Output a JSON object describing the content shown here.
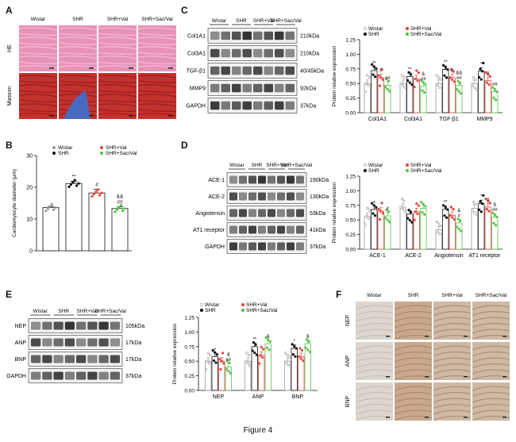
{
  "figure": {
    "caption": "Figure 4"
  },
  "panel_labels": {
    "A": "A",
    "B": "B",
    "C": "C",
    "D": "D",
    "E": "E",
    "F": "F"
  },
  "panel_a": {
    "columns": [
      "Wistar",
      "SHR",
      "SHR+Val",
      "SHR+Sac/Val"
    ],
    "rows": [
      "HE",
      "Masson"
    ]
  },
  "panel_c_blot": {
    "groups": [
      "Wistar",
      "SHR",
      "SHR+Val",
      "SHR+Sac/Val"
    ],
    "bands": [
      {
        "protein": "Col1A1",
        "size": "210kDa"
      },
      {
        "protein": "Col3A1",
        "size": "210kDa"
      },
      {
        "protein": "TGF-β1",
        "size": "40/45kDa"
      },
      {
        "protein": "MMP9",
        "size": "92kDa"
      },
      {
        "protein": "GAPDH",
        "size": "37kDa"
      }
    ]
  },
  "panel_d_blot": {
    "groups": [
      "Wistar",
      "SHR",
      "SHR+Val",
      "SHR+Sac/Val"
    ],
    "bands": [
      {
        "protein": "ACE-1",
        "size": "190kDa"
      },
      {
        "protein": "ACE-2",
        "size": "130kDa"
      },
      {
        "protein": "Angiotensin",
        "size": "53kDa"
      },
      {
        "protein": "AT1 receptor",
        "size": "41kDa"
      },
      {
        "protein": "GAPDH",
        "size": "37kDa"
      }
    ]
  },
  "panel_e_blot": {
    "groups": [
      "Wistar",
      "SHR",
      "SHR+Val",
      "SHR+Sac/Val"
    ],
    "bands": [
      {
        "protein": "NEP",
        "size": "105kDa"
      },
      {
        "protein": "ANP",
        "size": "17kDa"
      },
      {
        "protein": "BNP",
        "size": "17kDa"
      },
      {
        "protein": "GAPDH",
        "size": "37kDa"
      }
    ]
  },
  "panel_f": {
    "columns": [
      "Wistar",
      "SHR",
      "SHR+Val",
      "SHR+Sac/Val"
    ],
    "rows": [
      "NEP",
      "ANP",
      "BNP"
    ]
  },
  "colors": {
    "wistar": "#9a9a9a",
    "shr": "#111111",
    "val": "#e8463c",
    "sacval": "#57c34a"
  },
  "chart_data": [
    {
      "id": "B",
      "type": "bar",
      "categories": [
        "Wistar",
        "SHR",
        "SHR+Val",
        "SHR+Sac/Val"
      ],
      "values": [
        13.6,
        21.2,
        18.2,
        13.3
      ],
      "errors": [
        0.4,
        0.7,
        1.2,
        0.6
      ],
      "ylabel": "Cardiomyocyte diameter (μm)",
      "ylim": [
        0,
        30
      ],
      "yticks": [
        0,
        10,
        20,
        30
      ],
      "legend": [
        "Wistar",
        "SHR",
        "SHR+Val",
        "SHR+Sac/Val"
      ],
      "annotations": [
        "",
        "**",
        "#",
        "&&\n##"
      ]
    },
    {
      "id": "C",
      "type": "bar",
      "categories": [
        "Col1A1",
        "Col3A1",
        "TGF-β1",
        "MMP9"
      ],
      "series": [
        {
          "name": "Wistar",
          "values": [
            0.5,
            0.5,
            0.5,
            0.5
          ]
        },
        {
          "name": "SHR",
          "values": [
            0.72,
            0.62,
            0.74,
            0.71
          ]
        },
        {
          "name": "SHR+Val",
          "values": [
            0.6,
            0.58,
            0.6,
            0.55
          ]
        },
        {
          "name": "SHR+Sac/Val",
          "values": [
            0.47,
            0.45,
            0.47,
            0.36
          ]
        }
      ],
      "ylabel": "Protein relative expression",
      "ylim": [
        0,
        1.25
      ],
      "yticks": [
        "0.00",
        "0.25",
        "0.50",
        "0.75",
        "1.00",
        "1.25"
      ],
      "annotations": [
        [
          "",
          "**",
          "#",
          "##"
        ],
        [
          "",
          "**",
          "",
          "&\n##"
        ],
        [
          "",
          "**",
          "#",
          "&&\n##"
        ],
        [
          "",
          "*",
          "#",
          "##"
        ]
      ]
    },
    {
      "id": "D",
      "type": "bar",
      "categories": [
        "ACE-1",
        "ACE-2",
        "Angiotensin",
        "AT1 receptor"
      ],
      "series": [
        {
          "name": "Wistar",
          "values": [
            0.56,
            0.72,
            0.33,
            0.7
          ]
        },
        {
          "name": "SHR",
          "values": [
            0.68,
            0.6,
            0.68,
            0.78
          ]
        },
        {
          "name": "SHR+Val",
          "values": [
            0.65,
            0.64,
            0.58,
            0.72
          ]
        },
        {
          "name": "SHR+Sac/Val",
          "values": [
            0.57,
            0.7,
            0.45,
            0.55
          ]
        }
      ],
      "ylabel": "Protein relative expression",
      "ylim": [
        0,
        1.25
      ],
      "yticks": [
        "0.00",
        "0.25",
        "0.50",
        "0.75",
        "1.00",
        "1.25"
      ],
      "annotations": [
        [
          "",
          "+",
          "",
          "#"
        ],
        [
          "",
          "",
          "",
          ""
        ],
        [
          "",
          "**",
          "",
          "&\n#"
        ],
        [
          "",
          "*",
          "#",
          "&\n##"
        ]
      ]
    },
    {
      "id": "E",
      "type": "bar",
      "categories": [
        "NEP",
        "ANP",
        "BNP"
      ],
      "series": [
        {
          "name": "Wistar",
          "values": [
            0.5,
            0.5,
            0.5
          ]
        },
        {
          "name": "SHR",
          "values": [
            0.58,
            0.75,
            0.72
          ]
        },
        {
          "name": "SHR+Val",
          "values": [
            0.5,
            0.6,
            0.58
          ]
        },
        {
          "name": "SHR+Sac/Val",
          "values": [
            0.4,
            0.8,
            0.8
          ]
        }
      ],
      "ylabel": "Protein relative expression",
      "ylim": [
        0,
        1.25
      ],
      "yticks": [
        "0.00",
        "0.25",
        "0.50",
        "0.75",
        "1.00",
        "1.25"
      ],
      "annotations": [
        [
          "",
          "+",
          "",
          "&\n##"
        ],
        [
          "",
          "**",
          "",
          "&"
        ],
        [
          "",
          "*",
          "",
          "&"
        ]
      ]
    }
  ]
}
